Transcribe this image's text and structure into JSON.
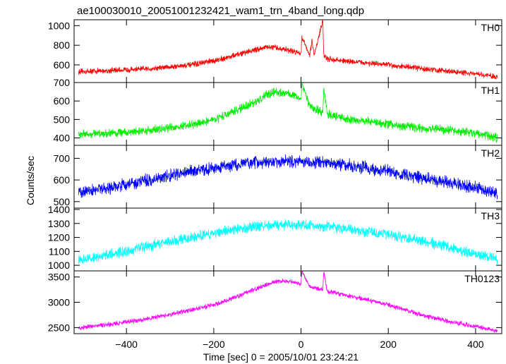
{
  "title": "ae100030010_20051001232421_wam1_trn_4band_long.qdp",
  "chart_data": {
    "type": "line",
    "title": "ae100030010_20051001232421_wam1_trn_4band_long.qdp",
    "xlabel": "Time [sec] 0 = 2005/10/01 23:24:21",
    "ylabel": "Counts/sec",
    "xlim": [
      -520,
      460
    ],
    "x_ticks": [
      -400,
      -200,
      0,
      200,
      400
    ],
    "grid": false,
    "legend": "none",
    "panels": [
      {
        "name": "TH0",
        "color": "#ff0000",
        "ylim": [
          420,
          1060
        ],
        "y_ticks": [
          600,
          800,
          1000
        ],
        "x": [
          -510,
          -450,
          -400,
          -350,
          -300,
          -250,
          -200,
          -150,
          -100,
          -80,
          -60,
          -40,
          -20,
          0,
          2,
          20,
          25,
          30,
          50,
          52,
          60,
          100,
          150,
          200,
          250,
          300,
          350,
          400,
          450
        ],
        "y": [
          530,
          540,
          550,
          560,
          580,
          600,
          640,
          700,
          760,
          780,
          775,
          760,
          740,
          720,
          880,
          700,
          850,
          690,
          1060,
          700,
          660,
          640,
          620,
          600,
          575,
          550,
          530,
          505,
          480
        ],
        "noise": 35
      },
      {
        "name": "TH1",
        "color": "#00ee00",
        "ylim": [
          360,
          700
        ],
        "y_ticks": [
          400,
          500,
          600,
          700
        ],
        "x": [
          -510,
          -450,
          -400,
          -350,
          -300,
          -250,
          -200,
          -150,
          -100,
          -80,
          -60,
          -40,
          -20,
          0,
          2,
          20,
          50,
          52,
          60,
          100,
          150,
          200,
          250,
          300,
          350,
          400,
          450
        ],
        "y": [
          420,
          425,
          430,
          440,
          455,
          470,
          500,
          545,
          600,
          630,
          650,
          645,
          635,
          610,
          700,
          570,
          540,
          680,
          530,
          505,
          490,
          475,
          460,
          450,
          440,
          425,
          400
        ],
        "noise": 28
      },
      {
        "name": "TH2",
        "color": "#0000ff",
        "ylim": [
          470,
          760
        ],
        "y_ticks": [
          500,
          600,
          700
        ],
        "x": [
          -510,
          -450,
          -400,
          -350,
          -300,
          -250,
          -200,
          -150,
          -100,
          -50,
          0,
          50,
          100,
          150,
          200,
          250,
          300,
          350,
          400,
          450
        ],
        "y": [
          540,
          560,
          580,
          600,
          620,
          640,
          655,
          670,
          680,
          685,
          685,
          680,
          670,
          655,
          640,
          620,
          600,
          585,
          565,
          530
        ],
        "noise": 35
      },
      {
        "name": "TH3",
        "color": "#00ffff",
        "ylim": [
          960,
          1410
        ],
        "y_ticks": [
          1000,
          1100,
          1200,
          1300,
          1400
        ],
        "x": [
          -510,
          -450,
          -400,
          -350,
          -300,
          -250,
          -200,
          -150,
          -100,
          -50,
          0,
          50,
          100,
          150,
          200,
          250,
          300,
          350,
          400,
          450
        ],
        "y": [
          1030,
          1070,
          1100,
          1140,
          1170,
          1200,
          1230,
          1260,
          1280,
          1290,
          1290,
          1280,
          1260,
          1240,
          1220,
          1190,
          1160,
          1120,
          1080,
          1050
        ],
        "noise": 45
      },
      {
        "name": "TH0123",
        "color": "#ff00ff",
        "ylim": [
          2380,
          3620
        ],
        "y_ticks": [
          2500,
          3000,
          3500
        ],
        "x": [
          -510,
          -450,
          -400,
          -350,
          -300,
          -250,
          -200,
          -150,
          -100,
          -60,
          -40,
          -20,
          0,
          2,
          20,
          50,
          52,
          60,
          100,
          150,
          200,
          250,
          300,
          350,
          400,
          450
        ],
        "y": [
          2490,
          2550,
          2610,
          2680,
          2760,
          2850,
          2950,
          3100,
          3280,
          3400,
          3420,
          3400,
          3350,
          3620,
          3300,
          3250,
          3620,
          3220,
          3150,
          3050,
          2950,
          2820,
          2700,
          2600,
          2520,
          2440
        ],
        "noise": 55
      }
    ]
  }
}
